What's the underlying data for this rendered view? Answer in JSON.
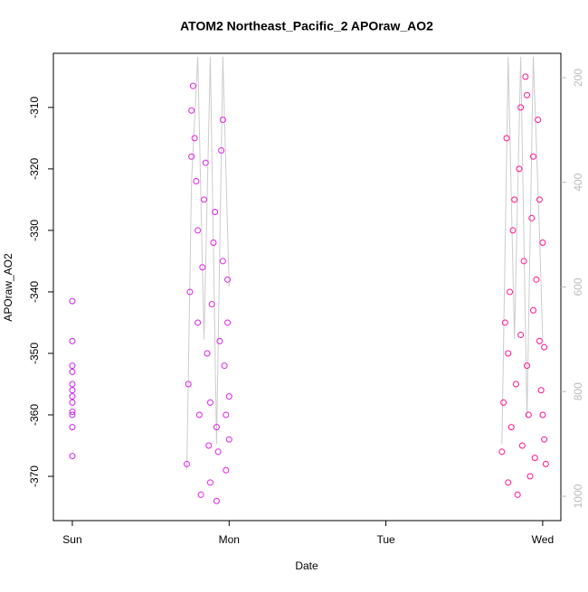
{
  "chart_data": {
    "type": "scatter",
    "title": "ATOM2 Northeast_Pacific_2 APOraw_AO2",
    "x_label": "Date",
    "y_label": "APOraw_AO2",
    "xlim": [
      -0.121,
      3.116
    ],
    "xticks": [
      {
        "value": 0,
        "label": "Sun"
      },
      {
        "value": 1,
        "label": "Mon"
      },
      {
        "value": 2,
        "label": "Tue"
      },
      {
        "value": 3,
        "label": "Wed"
      }
    ],
    "ylim": [
      -377.2,
      -301.2
    ],
    "yticks": [
      -370,
      -360,
      -350,
      -340,
      -330,
      -320,
      -310
    ],
    "y2lim": [
      1046.6,
      153.4
    ],
    "y2ticks": [
      200,
      400,
      600,
      800,
      1000
    ],
    "y2_color": "#bbbbbb",
    "series": [
      {
        "type": "line",
        "axis": "y2",
        "color": "#cccccc",
        "x": [
          0.73,
          0.76,
          0.8,
          0.84,
          0.88,
          0.92,
          0.96,
          1.0,
          null,
          2.74,
          2.78,
          2.82,
          2.86,
          2.9,
          2.94,
          2.98,
          3.0
        ],
        "values": [
          950,
          400,
          160,
          700,
          160,
          900,
          160,
          600,
          null,
          900,
          160,
          700,
          160,
          850,
          160,
          500,
          700
        ]
      },
      {
        "type": "scatter",
        "color": "#cc22ee",
        "x": [
          0,
          0,
          0,
          0,
          0,
          0,
          0,
          0,
          0,
          0,
          0,
          0
        ],
        "values": [
          -341.5,
          -348,
          -352,
          -353,
          -355,
          -356,
          -357,
          -358,
          -359.5,
          -360,
          -362,
          -366.7
        ]
      },
      {
        "type": "scatter",
        "color": "#e020e8",
        "x": [
          0.73,
          0.74,
          0.75,
          0.76,
          0.76,
          0.77,
          0.78,
          0.79,
          0.8,
          0.8,
          0.81,
          0.82,
          0.83,
          0.84,
          0.85,
          0.86,
          0.87,
          0.88,
          0.88,
          0.89,
          0.9,
          0.91,
          0.92,
          0.92,
          0.93,
          0.94,
          0.95,
          0.96,
          0.96,
          0.97,
          0.98,
          0.98,
          0.99,
          0.99,
          1.0,
          1.0
        ],
        "values": [
          -368,
          -355,
          -340,
          -318,
          -310.5,
          -306.5,
          -315,
          -322,
          -330,
          -345,
          -360,
          -373,
          -336,
          -325,
          -319,
          -350,
          -365,
          -371,
          -358,
          -342,
          -332,
          -327,
          -362,
          -374,
          -366,
          -348,
          -317,
          -312,
          -335,
          -352,
          -369,
          -360,
          -345,
          -338,
          -357,
          -364
        ]
      },
      {
        "type": "scatter",
        "color": "#ff1493",
        "x": [
          2.74,
          2.75,
          2.76,
          2.77,
          2.78,
          2.78,
          2.79,
          2.8,
          2.81,
          2.82,
          2.83,
          2.84,
          2.85,
          2.86,
          2.86,
          2.87,
          2.88,
          2.89,
          2.9,
          2.9,
          2.91,
          2.92,
          2.93,
          2.94,
          2.94,
          2.95,
          2.96,
          2.97,
          2.98,
          2.98,
          2.99,
          3.0,
          3.0,
          3.01,
          3.01,
          3.02
        ],
        "values": [
          -366,
          -358,
          -345,
          -315,
          -371,
          -350,
          -340,
          -362,
          -330,
          -325,
          -355,
          -373,
          -320,
          -310,
          -347,
          -365,
          -335,
          -305,
          -308,
          -352,
          -360,
          -370,
          -328,
          -318,
          -343,
          -367,
          -338,
          -312,
          -325,
          -348,
          -356,
          -332,
          -360,
          -364,
          -349,
          -368
        ]
      }
    ]
  }
}
